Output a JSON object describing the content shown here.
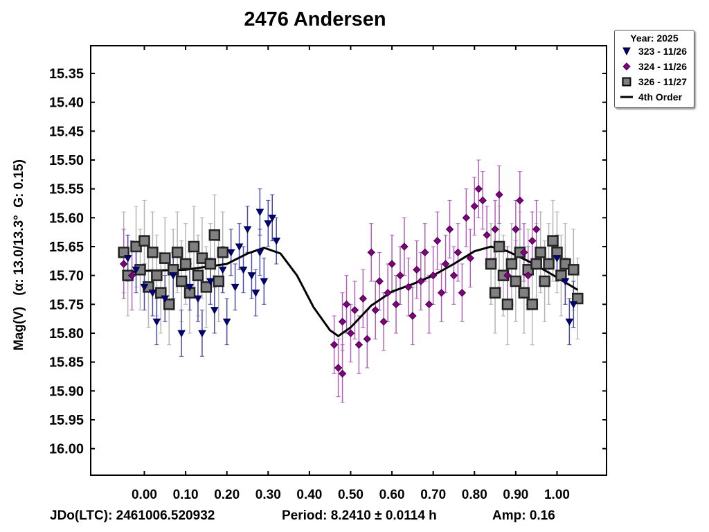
{
  "chart_data": {
    "type": "scatter",
    "title": "2476 Andersen",
    "ylabel": "Mag(V)   (α: 13.0/13.3°  G: 0.15)",
    "xlabel": "",
    "xlim": [
      -0.13,
      1.12
    ],
    "ylim": [
      16.046,
      15.302
    ],
    "y_inverted": true,
    "xticks": [
      "0.00",
      "0.10",
      "0.20",
      "0.30",
      "0.40",
      "0.50",
      "0.60",
      "0.70",
      "0.80",
      "0.90",
      "1.00"
    ],
    "yticks": [
      "15.35",
      "15.40",
      "15.45",
      "15.50",
      "15.55",
      "15.60",
      "15.65",
      "15.70",
      "15.75",
      "15.80",
      "15.85",
      "15.90",
      "15.95",
      "16.00"
    ],
    "footer": {
      "jd": "JDo(LTC): 2461006.520932",
      "period": "Period: 8.2410 ± 0.0114 h",
      "amp": "Amp: 0.16"
    },
    "legend": {
      "title": "Year: 2025",
      "placement": "top-right outside",
      "entries": [
        "323 - 11/26",
        "324 - 11/26",
        "326 - 11/27",
        "4th Order"
      ]
    },
    "series": [
      {
        "name": "323 - 11/26",
        "marker": "triangle-down",
        "color": "#000080",
        "errcolor": "#4a4aa8",
        "points": [
          [
            -0.04,
            15.67,
            0.04
          ],
          [
            -0.02,
            15.69,
            0.04
          ],
          [
            0.0,
            15.72,
            0.04
          ],
          [
            0.02,
            15.73,
            0.04
          ],
          [
            0.03,
            15.78,
            0.04
          ],
          [
            0.05,
            15.74,
            0.04
          ],
          [
            0.07,
            15.7,
            0.04
          ],
          [
            0.09,
            15.8,
            0.04
          ],
          [
            0.11,
            15.72,
            0.04
          ],
          [
            0.13,
            15.74,
            0.04
          ],
          [
            0.14,
            15.8,
            0.04
          ],
          [
            0.16,
            15.71,
            0.04
          ],
          [
            0.17,
            15.76,
            0.04
          ],
          [
            0.19,
            15.69,
            0.04
          ],
          [
            0.2,
            15.78,
            0.04
          ],
          [
            0.21,
            15.66,
            0.04
          ],
          [
            0.22,
            15.72,
            0.04
          ],
          [
            0.23,
            15.65,
            0.04
          ],
          [
            0.24,
            15.69,
            0.04
          ],
          [
            0.25,
            15.62,
            0.04
          ],
          [
            0.26,
            15.7,
            0.04
          ],
          [
            0.27,
            15.73,
            0.04
          ],
          [
            0.28,
            15.66,
            0.04
          ],
          [
            0.28,
            15.59,
            0.04
          ],
          [
            0.29,
            15.71,
            0.04
          ],
          [
            0.3,
            15.61,
            0.04
          ],
          [
            0.31,
            15.6,
            0.04
          ],
          [
            0.32,
            15.64,
            0.04
          ],
          [
            1.0,
            15.67,
            0.04
          ],
          [
            1.02,
            15.71,
            0.04
          ],
          [
            1.03,
            15.78,
            0.04
          ],
          [
            1.04,
            15.75,
            0.04
          ]
        ]
      },
      {
        "name": "324 - 11/26",
        "marker": "diamond",
        "color": "#800080",
        "errcolor": "#b060b8",
        "points": [
          [
            -0.05,
            15.68,
            0.06
          ],
          [
            -0.03,
            15.7,
            0.06
          ],
          [
            0.46,
            15.82,
            0.05
          ],
          [
            0.47,
            15.86,
            0.05
          ],
          [
            0.48,
            15.87,
            0.05
          ],
          [
            0.48,
            15.78,
            0.05
          ],
          [
            0.49,
            15.75,
            0.05
          ],
          [
            0.5,
            15.8,
            0.05
          ],
          [
            0.51,
            15.76,
            0.05
          ],
          [
            0.52,
            15.82,
            0.05
          ],
          [
            0.53,
            15.74,
            0.05
          ],
          [
            0.54,
            15.81,
            0.05
          ],
          [
            0.55,
            15.66,
            0.05
          ],
          [
            0.56,
            15.76,
            0.05
          ],
          [
            0.57,
            15.71,
            0.05
          ],
          [
            0.58,
            15.78,
            0.05
          ],
          [
            0.59,
            15.73,
            0.05
          ],
          [
            0.6,
            15.68,
            0.05
          ],
          [
            0.61,
            15.75,
            0.05
          ],
          [
            0.62,
            15.7,
            0.05
          ],
          [
            0.63,
            15.65,
            0.05
          ],
          [
            0.64,
            15.72,
            0.05
          ],
          [
            0.65,
            15.77,
            0.05
          ],
          [
            0.66,
            15.69,
            0.05
          ],
          [
            0.67,
            15.71,
            0.05
          ],
          [
            0.68,
            15.66,
            0.05
          ],
          [
            0.69,
            15.75,
            0.05
          ],
          [
            0.7,
            15.7,
            0.05
          ],
          [
            0.71,
            15.64,
            0.05
          ],
          [
            0.72,
            15.73,
            0.05
          ],
          [
            0.73,
            15.68,
            0.05
          ],
          [
            0.74,
            15.62,
            0.05
          ],
          [
            0.75,
            15.7,
            0.05
          ],
          [
            0.76,
            15.66,
            0.05
          ],
          [
            0.77,
            15.73,
            0.05
          ],
          [
            0.78,
            15.6,
            0.05
          ],
          [
            0.79,
            15.67,
            0.05
          ],
          [
            0.8,
            15.58,
            0.05
          ],
          [
            0.81,
            15.55,
            0.05
          ],
          [
            0.82,
            15.57,
            0.05
          ],
          [
            0.83,
            15.63,
            0.05
          ],
          [
            0.85,
            15.62,
            0.05
          ],
          [
            0.86,
            15.56,
            0.05
          ],
          [
            0.88,
            15.7,
            0.05
          ],
          [
            0.9,
            15.62,
            0.05
          ],
          [
            0.91,
            15.57,
            0.05
          ],
          [
            0.92,
            15.66,
            0.05
          ],
          [
            0.93,
            15.7,
            0.05
          ],
          [
            0.94,
            15.64,
            0.05
          ],
          [
            0.95,
            15.62,
            0.05
          ]
        ]
      },
      {
        "name": "326 - 11/27",
        "marker": "square",
        "color": "#808080",
        "errcolor": "#b4b4b4",
        "points": [
          [
            -0.05,
            15.66,
            0.07
          ],
          [
            -0.04,
            15.7,
            0.07
          ],
          [
            -0.02,
            15.65,
            0.07
          ],
          [
            -0.01,
            15.69,
            0.07
          ],
          [
            0.0,
            15.64,
            0.07
          ],
          [
            0.01,
            15.72,
            0.07
          ],
          [
            0.02,
            15.66,
            0.07
          ],
          [
            0.03,
            15.7,
            0.07
          ],
          [
            0.04,
            15.73,
            0.07
          ],
          [
            0.05,
            15.67,
            0.07
          ],
          [
            0.06,
            15.75,
            0.07
          ],
          [
            0.07,
            15.69,
            0.07
          ],
          [
            0.08,
            15.66,
            0.07
          ],
          [
            0.09,
            15.71,
            0.07
          ],
          [
            0.1,
            15.68,
            0.07
          ],
          [
            0.11,
            15.73,
            0.07
          ],
          [
            0.12,
            15.65,
            0.07
          ],
          [
            0.13,
            15.7,
            0.07
          ],
          [
            0.14,
            15.67,
            0.07
          ],
          [
            0.15,
            15.72,
            0.07
          ],
          [
            0.16,
            15.68,
            0.07
          ],
          [
            0.17,
            15.63,
            0.07
          ],
          [
            0.18,
            15.71,
            0.07
          ],
          [
            0.19,
            15.66,
            0.07
          ],
          [
            0.84,
            15.68,
            0.07
          ],
          [
            0.85,
            15.73,
            0.07
          ],
          [
            0.86,
            15.65,
            0.07
          ],
          [
            0.87,
            15.7,
            0.07
          ],
          [
            0.88,
            15.75,
            0.07
          ],
          [
            0.89,
            15.68,
            0.07
          ],
          [
            0.9,
            15.71,
            0.07
          ],
          [
            0.91,
            15.66,
            0.07
          ],
          [
            0.92,
            15.73,
            0.07
          ],
          [
            0.93,
            15.69,
            0.07
          ],
          [
            0.94,
            15.75,
            0.07
          ],
          [
            0.95,
            15.68,
            0.07
          ],
          [
            0.96,
            15.66,
            0.07
          ],
          [
            0.97,
            15.71,
            0.07
          ],
          [
            0.98,
            15.68,
            0.07
          ],
          [
            0.99,
            15.64,
            0.07
          ],
          [
            1.0,
            15.66,
            0.07
          ],
          [
            1.01,
            15.7,
            0.07
          ],
          [
            1.02,
            15.68,
            0.07
          ],
          [
            1.04,
            15.69,
            0.07
          ],
          [
            1.05,
            15.74,
            0.07
          ]
        ]
      }
    ],
    "fit": {
      "name": "4th Order",
      "color": "#000000",
      "points": [
        [
          -0.05,
          15.695
        ],
        [
          0.0,
          15.692
        ],
        [
          0.1,
          15.69
        ],
        [
          0.2,
          15.68
        ],
        [
          0.25,
          15.662
        ],
        [
          0.29,
          15.652
        ],
        [
          0.33,
          15.662
        ],
        [
          0.37,
          15.7
        ],
        [
          0.41,
          15.755
        ],
        [
          0.45,
          15.795
        ],
        [
          0.47,
          15.805
        ],
        [
          0.5,
          15.79
        ],
        [
          0.55,
          15.752
        ],
        [
          0.6,
          15.728
        ],
        [
          0.65,
          15.715
        ],
        [
          0.7,
          15.7
        ],
        [
          0.75,
          15.68
        ],
        [
          0.8,
          15.658
        ],
        [
          0.84,
          15.65
        ],
        [
          0.88,
          15.658
        ],
        [
          0.93,
          15.675
        ],
        [
          0.98,
          15.695
        ],
        [
          1.02,
          15.712
        ],
        [
          1.05,
          15.725
        ]
      ]
    }
  }
}
